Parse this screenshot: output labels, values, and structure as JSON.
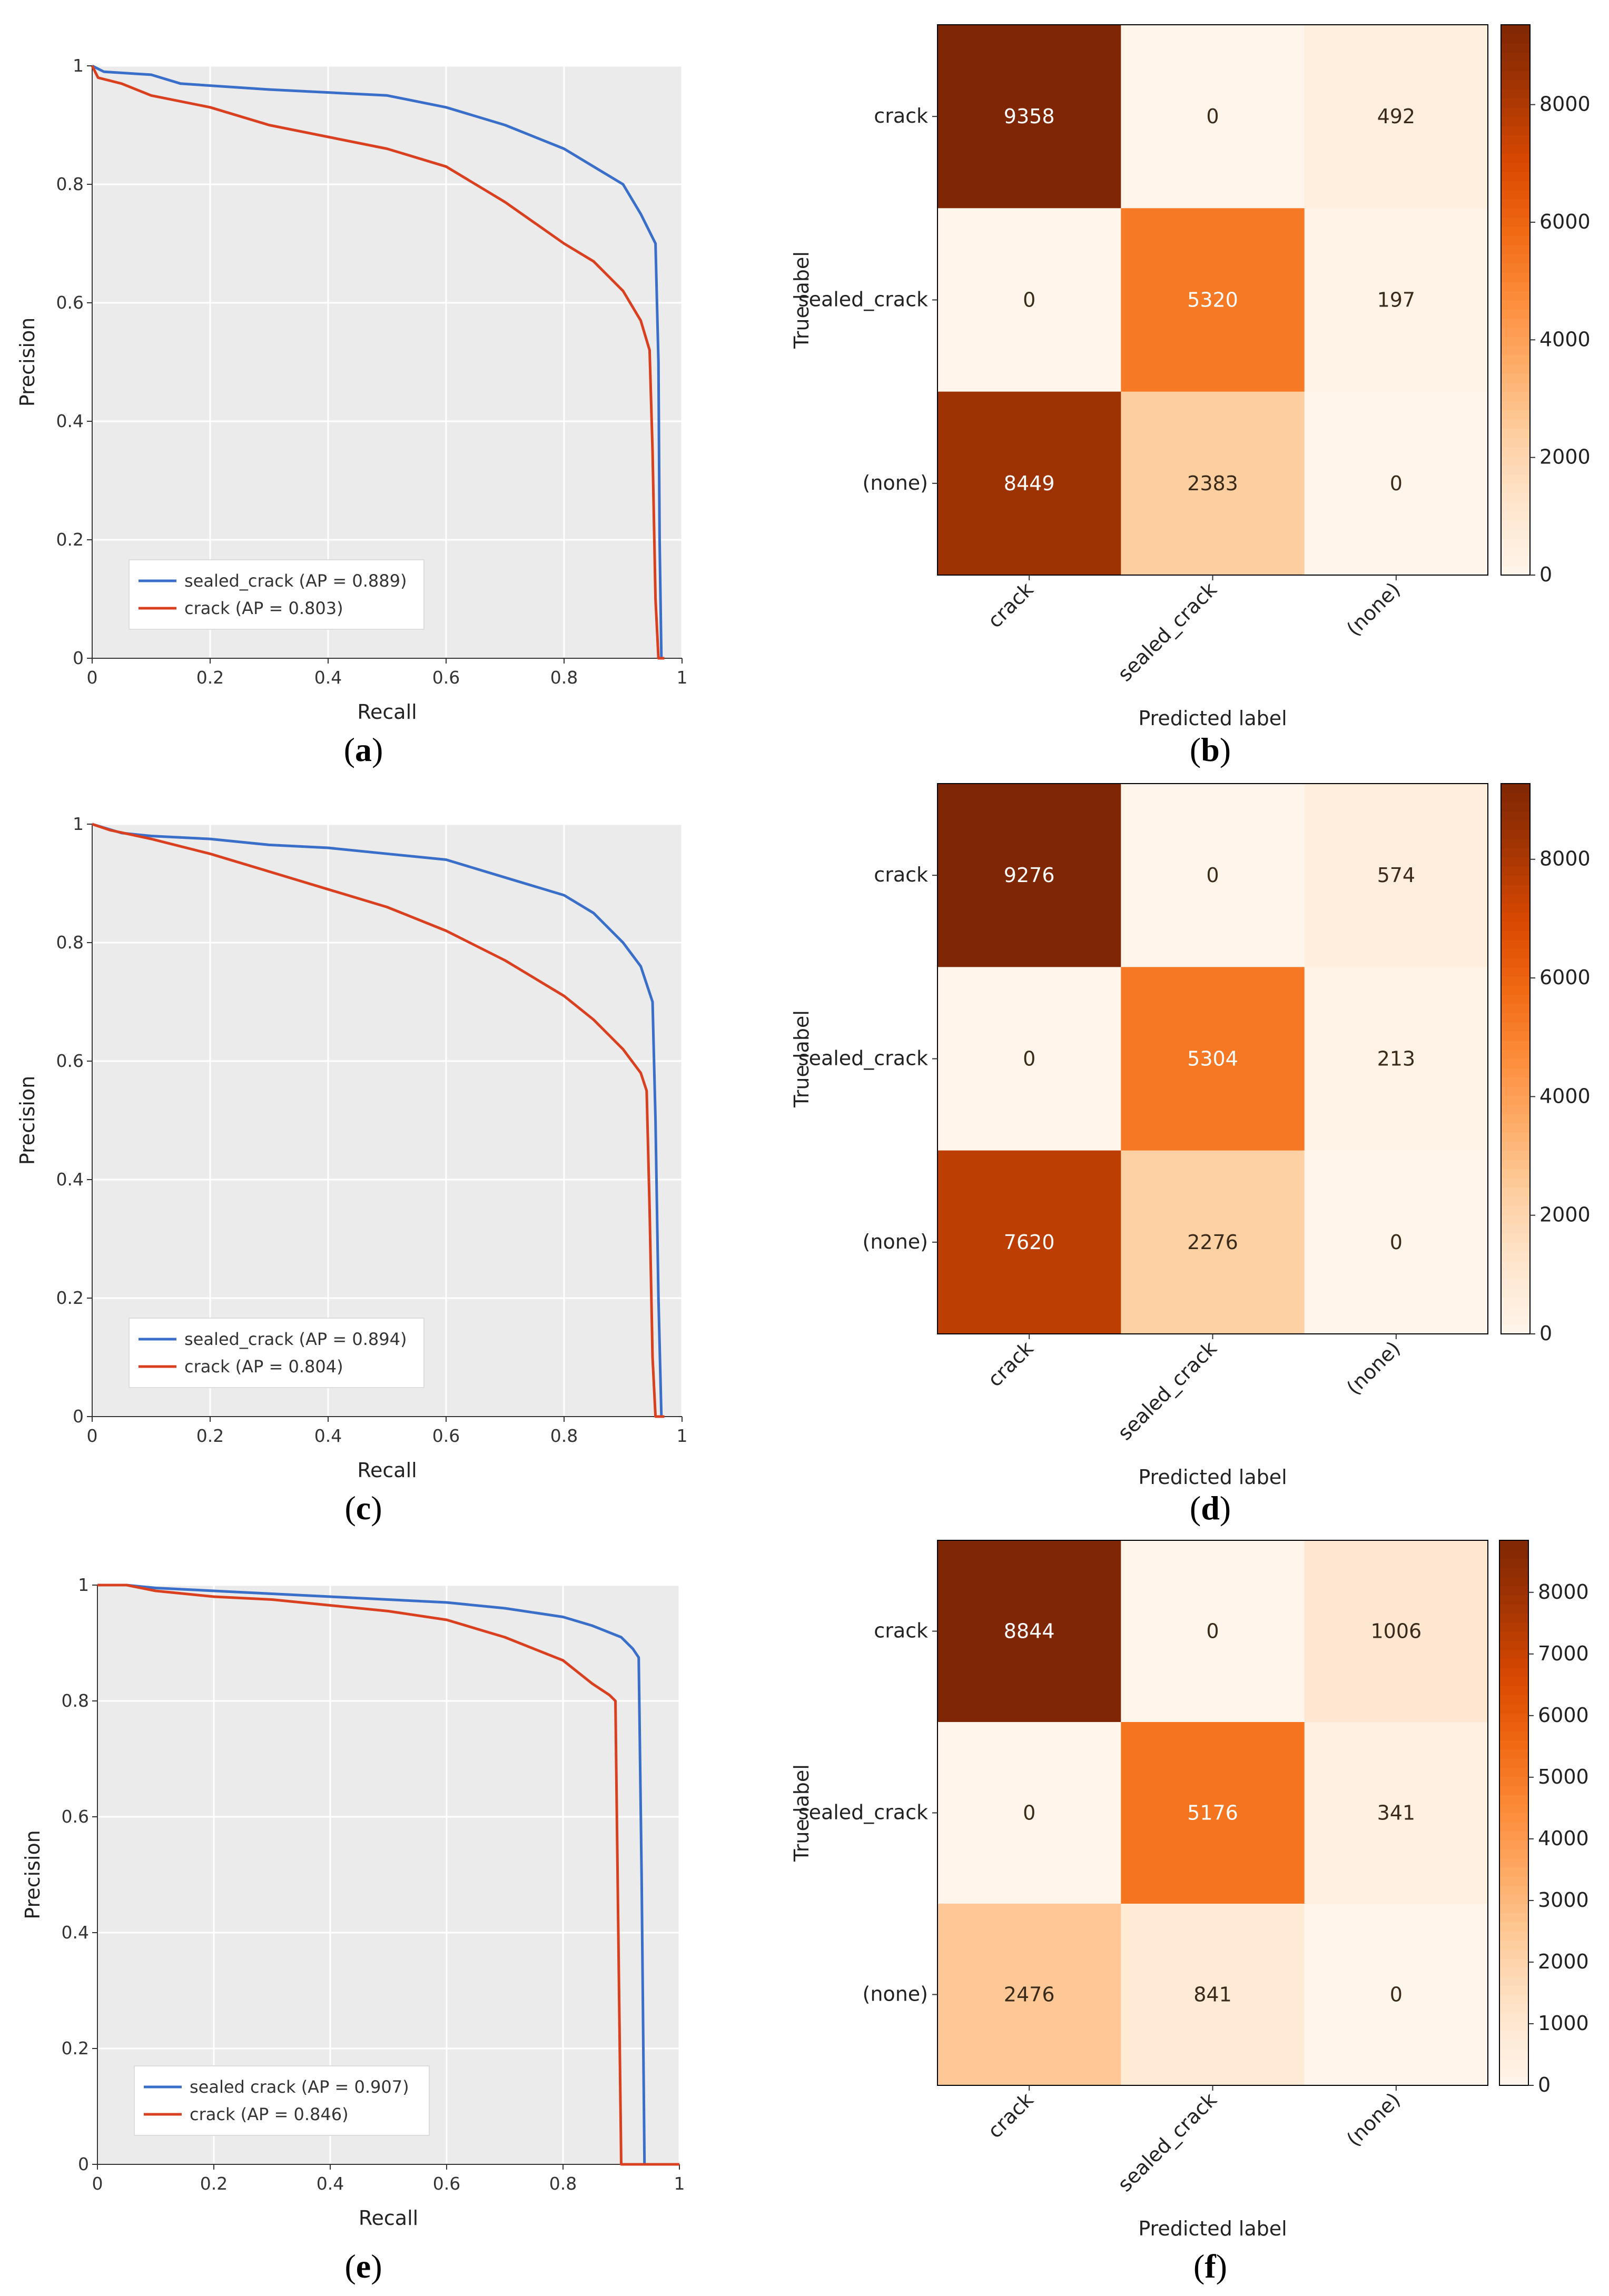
{
  "colors": {
    "sealed_crack": "#3a6fc9",
    "crack": "#d9401f",
    "cmap": [
      "#fff5eb",
      "#fee6ce",
      "#fdd0a2",
      "#fdae6b",
      "#fd8d3c",
      "#f16913",
      "#d94801",
      "#a63603",
      "#7f2704"
    ]
  },
  "chart_data": [
    {
      "id": "a",
      "type": "line",
      "panel_label": "a",
      "xlabel": "Recall",
      "ylabel": "Precision",
      "xlim": [
        0,
        1
      ],
      "ylim": [
        0,
        1
      ],
      "xticks": [
        0,
        0.2,
        0.4,
        0.6,
        0.8,
        1
      ],
      "xtick_labels": [
        "0",
        "0.2",
        "0.4",
        "0.6",
        "0.8",
        "1"
      ],
      "yticks": [
        0,
        0.2,
        0.4,
        0.6,
        0.8,
        1
      ],
      "ytick_labels": [
        "0",
        "0.2",
        "0.4",
        "0.6",
        "0.8",
        "1"
      ],
      "legend_position": "lower-left",
      "series": [
        {
          "name": "sealed_crack",
          "label": "sealed_crack (AP = 0.889)",
          "color_key": "sealed_crack",
          "x": [
            0,
            0.02,
            0.1,
            0.15,
            0.3,
            0.5,
            0.6,
            0.7,
            0.8,
            0.85,
            0.9,
            0.93,
            0.955,
            0.96,
            0.962,
            0.965,
            0.97
          ],
          "y": [
            1,
            0.99,
            0.985,
            0.97,
            0.96,
            0.95,
            0.93,
            0.9,
            0.86,
            0.83,
            0.8,
            0.75,
            0.7,
            0.5,
            0.2,
            0,
            0
          ]
        },
        {
          "name": "crack",
          "label": "crack (AP = 0.803)",
          "color_key": "crack",
          "x": [
            0,
            0.01,
            0.05,
            0.1,
            0.2,
            0.3,
            0.4,
            0.5,
            0.6,
            0.7,
            0.8,
            0.85,
            0.9,
            0.93,
            0.945,
            0.95,
            0.955,
            0.96,
            0.97
          ],
          "y": [
            1,
            0.98,
            0.97,
            0.95,
            0.93,
            0.9,
            0.88,
            0.86,
            0.83,
            0.77,
            0.7,
            0.67,
            0.62,
            0.57,
            0.52,
            0.35,
            0.1,
            0,
            0
          ]
        }
      ]
    },
    {
      "id": "c",
      "type": "line",
      "panel_label": "c",
      "xlabel": "Recall",
      "ylabel": "Precision",
      "xlim": [
        0,
        1
      ],
      "ylim": [
        0,
        1
      ],
      "xticks": [
        0,
        0.2,
        0.4,
        0.6,
        0.8,
        1
      ],
      "xtick_labels": [
        "0",
        "0.2",
        "0.4",
        "0.6",
        "0.8",
        "1"
      ],
      "yticks": [
        0,
        0.2,
        0.4,
        0.6,
        0.8,
        1
      ],
      "ytick_labels": [
        "0",
        "0.2",
        "0.4",
        "0.6",
        "0.8",
        "1"
      ],
      "legend_position": "lower-left",
      "series": [
        {
          "name": "sealed_crack",
          "label": "sealed_crack (AP = 0.894)",
          "color_key": "sealed_crack",
          "x": [
            0,
            0.05,
            0.1,
            0.2,
            0.3,
            0.4,
            0.5,
            0.6,
            0.7,
            0.8,
            0.85,
            0.9,
            0.93,
            0.95,
            0.955,
            0.96,
            0.965,
            0.97
          ],
          "y": [
            1,
            0.985,
            0.98,
            0.975,
            0.965,
            0.96,
            0.95,
            0.94,
            0.91,
            0.88,
            0.85,
            0.8,
            0.76,
            0.7,
            0.5,
            0.2,
            0,
            0
          ]
        },
        {
          "name": "crack",
          "label": "crack (AP = 0.804)",
          "color_key": "crack",
          "x": [
            0,
            0.03,
            0.1,
            0.2,
            0.3,
            0.4,
            0.5,
            0.6,
            0.7,
            0.8,
            0.85,
            0.9,
            0.93,
            0.94,
            0.945,
            0.95,
            0.955,
            0.97
          ],
          "y": [
            1,
            0.99,
            0.975,
            0.95,
            0.92,
            0.89,
            0.86,
            0.82,
            0.77,
            0.71,
            0.67,
            0.62,
            0.58,
            0.55,
            0.35,
            0.1,
            0,
            0
          ]
        }
      ]
    },
    {
      "id": "e",
      "type": "line",
      "panel_label": "e",
      "xlabel": "Recall",
      "ylabel": "Precision",
      "xlim": [
        0,
        1
      ],
      "ylim": [
        0,
        1
      ],
      "xticks": [
        0,
        0.2,
        0.4,
        0.6,
        0.8,
        1
      ],
      "xtick_labels": [
        "0",
        "0.2",
        "0.4",
        "0.6",
        "0.8",
        "1"
      ],
      "yticks": [
        0,
        0.2,
        0.4,
        0.6,
        0.8,
        1
      ],
      "ytick_labels": [
        "0",
        "0.2",
        "0.4",
        "0.6",
        "0.8",
        "1"
      ],
      "legend_position": "lower-left",
      "series": [
        {
          "name": "sealed_crack",
          "label": "sealed crack (AP = 0.907)",
          "color_key": "sealed_crack",
          "x": [
            0,
            0.05,
            0.1,
            0.2,
            0.3,
            0.4,
            0.5,
            0.6,
            0.7,
            0.8,
            0.85,
            0.9,
            0.92,
            0.93,
            0.935,
            0.94,
            1.0
          ],
          "y": [
            1,
            1,
            0.995,
            0.99,
            0.985,
            0.98,
            0.975,
            0.97,
            0.96,
            0.945,
            0.93,
            0.91,
            0.89,
            0.875,
            0.5,
            0,
            0
          ]
        },
        {
          "name": "crack",
          "label": "crack (AP = 0.846)",
          "color_key": "crack",
          "x": [
            0,
            0.05,
            0.1,
            0.15,
            0.2,
            0.3,
            0.4,
            0.5,
            0.6,
            0.7,
            0.8,
            0.85,
            0.88,
            0.89,
            0.895,
            0.9,
            1.0
          ],
          "y": [
            1,
            1,
            0.99,
            0.985,
            0.98,
            0.975,
            0.965,
            0.955,
            0.94,
            0.91,
            0.87,
            0.83,
            0.81,
            0.8,
            0.4,
            0,
            0
          ]
        }
      ]
    },
    {
      "id": "b",
      "type": "heatmap",
      "panel_label": "b",
      "xlabel": "Predicted label",
      "ylabel": "True label",
      "row_labels": [
        "crack",
        "sealed_crack",
        "(none)"
      ],
      "col_labels": [
        "crack",
        "sealed_crack",
        "(none)"
      ],
      "values": [
        [
          9358,
          0,
          492
        ],
        [
          0,
          5320,
          197
        ],
        [
          8449,
          2383,
          0
        ]
      ],
      "value_labels": [
        [
          "9358",
          "0",
          "492"
        ],
        [
          "0",
          "5320",
          "197"
        ],
        [
          "8449",
          "2383",
          "0"
        ]
      ],
      "vmin": 0,
      "vmax": 9358,
      "colorbar_ticks": [
        0,
        2000,
        4000,
        6000,
        8000
      ],
      "colorbar_tick_labels": [
        "0",
        "2000",
        "4000",
        "6000",
        "8000"
      ]
    },
    {
      "id": "d",
      "type": "heatmap",
      "panel_label": "d",
      "xlabel": "Predicted label",
      "ylabel": "True label",
      "row_labels": [
        "crack",
        "sealed_crack",
        "(none)"
      ],
      "col_labels": [
        "crack",
        "sealed_crack",
        "(none)"
      ],
      "values": [
        [
          9276,
          0,
          574
        ],
        [
          0,
          5304,
          213
        ],
        [
          7620,
          2276,
          0
        ]
      ],
      "value_labels": [
        [
          "9276",
          "0",
          "574"
        ],
        [
          "0",
          "5304",
          "213"
        ],
        [
          "7620",
          "2276",
          "0"
        ]
      ],
      "vmin": 0,
      "vmax": 9276,
      "colorbar_ticks": [
        0,
        2000,
        4000,
        6000,
        8000
      ],
      "colorbar_tick_labels": [
        "0",
        "2000",
        "4000",
        "6000",
        "8000"
      ]
    },
    {
      "id": "f",
      "type": "heatmap",
      "panel_label": "f",
      "xlabel": "Predicted label",
      "ylabel": "True label",
      "row_labels": [
        "crack",
        "sealed_crack",
        "(none)"
      ],
      "col_labels": [
        "crack",
        "sealed_crack",
        "(none)"
      ],
      "values": [
        [
          8844,
          0,
          1006
        ],
        [
          0,
          5176,
          341
        ],
        [
          2476,
          841,
          0
        ]
      ],
      "value_labels": [
        [
          "8844",
          "0",
          "1006"
        ],
        [
          "0",
          "5176",
          "341"
        ],
        [
          "2476",
          "841",
          "0"
        ]
      ],
      "vmin": 0,
      "vmax": 8844,
      "colorbar_ticks": [
        0,
        1000,
        2000,
        3000,
        4000,
        5000,
        6000,
        7000,
        8000
      ],
      "colorbar_tick_labels": [
        "0",
        "1000",
        "2000",
        "3000",
        "4000",
        "5000",
        "6000",
        "7000",
        "8000"
      ]
    }
  ]
}
